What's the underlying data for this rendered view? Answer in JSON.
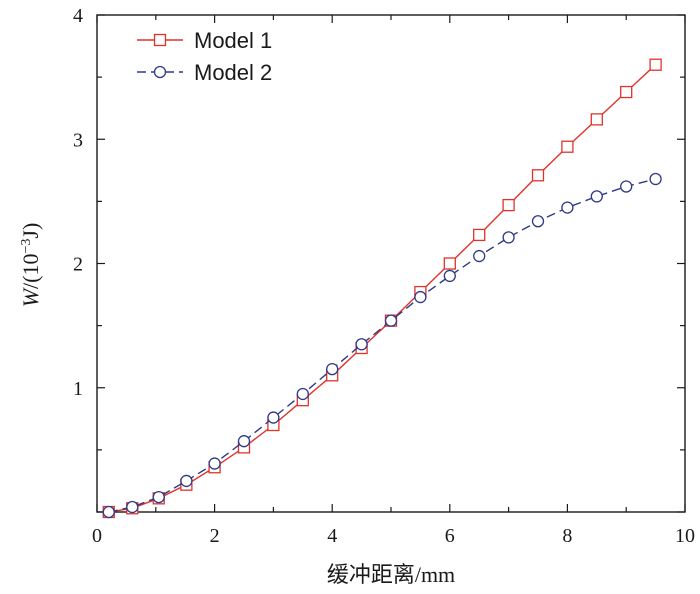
{
  "chart_data": {
    "type": "line",
    "xlabel": "缓冲距离/mm",
    "ylabel": {
      "var": "W",
      "unit_open": "/(10",
      "exp": "−3",
      "unit_close": "J)"
    },
    "xlim": [
      0,
      10
    ],
    "ylim": [
      0,
      4
    ],
    "x_major_ticks": [
      0,
      2,
      4,
      6,
      8,
      10
    ],
    "y_major_ticks": [
      1,
      2,
      3,
      4
    ],
    "x_tick_labels": [
      "0",
      "2",
      "4",
      "6",
      "8",
      "10"
    ],
    "y_tick_labels": [
      "1",
      "2",
      "3",
      "4"
    ],
    "legend_position": "top-left",
    "grid": false,
    "series": [
      {
        "name": "Model 1",
        "color": "#e0332b",
        "marker": "square",
        "line_style": "solid",
        "x": [
          0.2,
          0.6,
          1.05,
          1.52,
          2.0,
          2.5,
          3.0,
          3.5,
          4.0,
          4.5,
          5.0,
          5.5,
          6.0,
          6.5,
          7.0,
          7.5,
          8.0,
          8.5,
          9.0,
          9.5
        ],
        "y": [
          0.0,
          0.03,
          0.11,
          0.22,
          0.36,
          0.52,
          0.7,
          0.9,
          1.1,
          1.32,
          1.54,
          1.77,
          2.0,
          2.23,
          2.47,
          2.71,
          2.94,
          3.16,
          3.38,
          3.6
        ]
      },
      {
        "name": "Model 2",
        "color": "#2e3a87",
        "marker": "circle",
        "line_style": "dashed",
        "x": [
          0.2,
          0.6,
          1.05,
          1.52,
          2.0,
          2.5,
          3.0,
          3.5,
          4.0,
          4.5,
          5.0,
          5.5,
          6.0,
          6.5,
          7.0,
          7.5,
          8.0,
          8.5,
          9.0,
          9.5
        ],
        "y": [
          0.0,
          0.04,
          0.12,
          0.25,
          0.39,
          0.57,
          0.76,
          0.95,
          1.15,
          1.35,
          1.54,
          1.73,
          1.9,
          2.06,
          2.21,
          2.34,
          2.45,
          2.54,
          2.62,
          2.68
        ]
      }
    ]
  }
}
